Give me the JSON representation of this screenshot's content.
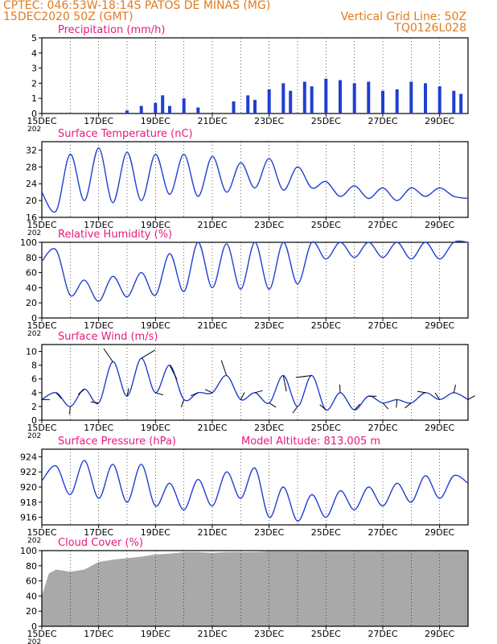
{
  "header": {
    "line1_left": "CPTEC:   046:53W-18:14S   PATOS DE MINAS (MG)",
    "line2_left": "15DEC2020 50Z (GMT)",
    "line2_right": "Vertical Grid Line: 50Z",
    "line3_right": "TQ0126L028"
  },
  "colors": {
    "header": "#e07a1c",
    "title": "#e8197c",
    "line": "#1f3fd0",
    "bars": "#1f3fd0",
    "cloud": "#a9a9a9",
    "arrow": "#000000"
  },
  "xaxis": {
    "start": "2020-12-15",
    "end": "2020-12-30",
    "ticks": [
      "15DEC",
      "17DEC",
      "19DEC",
      "21DEC",
      "23DEC",
      "25DEC",
      "27DEC",
      "29DEC"
    ],
    "year_label": "202"
  },
  "chart_data": [
    {
      "id": "precip",
      "type": "bar",
      "title": "Precipitation (mm/h)",
      "ylim": [
        0,
        5
      ],
      "yticks": [
        0,
        1,
        2,
        3,
        4,
        5
      ],
      "x": [
        "2020-12-18T00",
        "2020-12-18T12",
        "2020-12-19T00",
        "2020-12-19T06",
        "2020-12-19T12",
        "2020-12-20T00",
        "2020-12-20T12",
        "2020-12-21T18",
        "2020-12-22T06",
        "2020-12-22T12",
        "2020-12-23T00",
        "2020-12-23T12",
        "2020-12-23T18",
        "2020-12-24T06",
        "2020-12-24T12",
        "2020-12-25T00",
        "2020-12-25T12",
        "2020-12-26T00",
        "2020-12-26T12",
        "2020-12-27T00",
        "2020-12-27T12",
        "2020-12-28T00",
        "2020-12-28T12",
        "2020-12-29T00",
        "2020-12-29T12",
        "2020-12-29T18"
      ],
      "values": [
        0.2,
        0.5,
        0.7,
        1.2,
        0.5,
        1.0,
        0.4,
        0.8,
        1.2,
        0.9,
        1.6,
        2.0,
        1.5,
        2.1,
        1.8,
        2.3,
        2.2,
        2.0,
        2.1,
        1.5,
        1.6,
        2.1,
        2.0,
        1.8,
        1.5,
        1.3
      ]
    },
    {
      "id": "temp",
      "type": "line",
      "title": "Surface Temperature (nC)",
      "ylim": [
        16,
        34
      ],
      "yticks": [
        16,
        20,
        24,
        28,
        32
      ],
      "x": [
        "2020-12-15T00",
        "2020-12-15T12",
        "2020-12-16T00",
        "2020-12-16T12",
        "2020-12-17T00",
        "2020-12-17T12",
        "2020-12-18T00",
        "2020-12-18T12",
        "2020-12-19T00",
        "2020-12-19T12",
        "2020-12-20T00",
        "2020-12-20T12",
        "2020-12-21T00",
        "2020-12-21T12",
        "2020-12-22T00",
        "2020-12-22T12",
        "2020-12-23T00",
        "2020-12-23T12",
        "2020-12-24T00",
        "2020-12-24T12",
        "2020-12-25T00",
        "2020-12-25T12",
        "2020-12-26T00",
        "2020-12-26T12",
        "2020-12-27T00",
        "2020-12-27T12",
        "2020-12-28T00",
        "2020-12-28T12",
        "2020-12-29T00",
        "2020-12-29T12",
        "2020-12-30T00"
      ],
      "values": [
        22.0,
        17.5,
        31.0,
        20.0,
        32.5,
        19.5,
        31.5,
        20.0,
        31.0,
        21.5,
        31.0,
        21.0,
        30.5,
        22.0,
        29.0,
        23.0,
        30.0,
        22.5,
        28.0,
        23.0,
        24.5,
        21.0,
        23.5,
        20.5,
        23.0,
        20.0,
        23.0,
        21.0,
        23.0,
        21.0,
        20.5
      ]
    },
    {
      "id": "rh",
      "type": "line",
      "title": "Relative Humidity (%)",
      "ylim": [
        0,
        100
      ],
      "yticks": [
        0,
        20,
        40,
        60,
        80,
        100
      ],
      "x": [
        "2020-12-15T00",
        "2020-12-15T12",
        "2020-12-16T00",
        "2020-12-16T12",
        "2020-12-17T00",
        "2020-12-17T12",
        "2020-12-18T00",
        "2020-12-18T12",
        "2020-12-19T00",
        "2020-12-19T12",
        "2020-12-20T00",
        "2020-12-20T12",
        "2020-12-21T00",
        "2020-12-21T12",
        "2020-12-22T00",
        "2020-12-22T12",
        "2020-12-23T00",
        "2020-12-23T12",
        "2020-12-24T00",
        "2020-12-24T12",
        "2020-12-25T00",
        "2020-12-25T12",
        "2020-12-26T00",
        "2020-12-26T12",
        "2020-12-27T00",
        "2020-12-27T12",
        "2020-12-28T00",
        "2020-12-28T12",
        "2020-12-29T00",
        "2020-12-29T12",
        "2020-12-30T00"
      ],
      "values": [
        75,
        90,
        30,
        50,
        22,
        55,
        28,
        60,
        30,
        85,
        35,
        100,
        40,
        98,
        38,
        100,
        38,
        100,
        45,
        100,
        78,
        100,
        80,
        100,
        80,
        100,
        78,
        100,
        78,
        100,
        100
      ]
    },
    {
      "id": "wind",
      "type": "line",
      "title": "Surface Wind (m/s)",
      "ylim": [
        0,
        11
      ],
      "yticks": [
        0,
        2,
        4,
        6,
        8,
        10
      ],
      "x": [
        "2020-12-15T00",
        "2020-12-15T12",
        "2020-12-16T00",
        "2020-12-16T12",
        "2020-12-17T00",
        "2020-12-17T12",
        "2020-12-18T00",
        "2020-12-18T12",
        "2020-12-19T00",
        "2020-12-19T12",
        "2020-12-20T00",
        "2020-12-20T12",
        "2020-12-21T00",
        "2020-12-21T12",
        "2020-12-22T00",
        "2020-12-22T12",
        "2020-12-23T00",
        "2020-12-23T12",
        "2020-12-24T00",
        "2020-12-24T12",
        "2020-12-25T00",
        "2020-12-25T12",
        "2020-12-26T00",
        "2020-12-26T12",
        "2020-12-27T00",
        "2020-12-27T12",
        "2020-12-28T00",
        "2020-12-28T12",
        "2020-12-29T00",
        "2020-12-29T12",
        "2020-12-30T00"
      ],
      "values": [
        3.0,
        4.0,
        2.0,
        4.5,
        2.5,
        8.5,
        3.5,
        9.0,
        4.0,
        8.0,
        3.0,
        4.0,
        4.0,
        6.5,
        3.0,
        4.0,
        2.5,
        6.5,
        2.0,
        6.5,
        1.5,
        4.0,
        1.5,
        3.5,
        2.5,
        3.0,
        2.5,
        4.0,
        3.0,
        4.0,
        3.0
      ]
    },
    {
      "id": "pressure",
      "type": "line",
      "title": "Surface Pressure (hPa)",
      "annotation": "Model Altitude: 813.005 m",
      "ylim": [
        915,
        925
      ],
      "yticks": [
        916,
        918,
        920,
        922,
        924
      ],
      "x": [
        "2020-12-15T00",
        "2020-12-15T12",
        "2020-12-16T00",
        "2020-12-16T12",
        "2020-12-17T00",
        "2020-12-17T12",
        "2020-12-18T00",
        "2020-12-18T12",
        "2020-12-19T00",
        "2020-12-19T12",
        "2020-12-20T00",
        "2020-12-20T12",
        "2020-12-21T00",
        "2020-12-21T12",
        "2020-12-22T00",
        "2020-12-22T12",
        "2020-12-23T00",
        "2020-12-23T12",
        "2020-12-24T00",
        "2020-12-24T12",
        "2020-12-25T00",
        "2020-12-25T12",
        "2020-12-26T00",
        "2020-12-26T12",
        "2020-12-27T00",
        "2020-12-27T12",
        "2020-12-28T00",
        "2020-12-28T12",
        "2020-12-29T00",
        "2020-12-29T12",
        "2020-12-30T00"
      ],
      "values": [
        920.8,
        922.8,
        919.0,
        923.5,
        918.5,
        923.0,
        918.0,
        923.0,
        917.5,
        920.5,
        917.0,
        921.0,
        917.5,
        922.0,
        918.5,
        922.5,
        916.0,
        920.0,
        915.5,
        919.0,
        916.0,
        919.5,
        917.0,
        920.0,
        917.5,
        920.5,
        918.0,
        921.5,
        918.5,
        921.5,
        920.5
      ]
    },
    {
      "id": "cloud",
      "type": "area",
      "title": "Cloud Cover (%)",
      "ylim": [
        0,
        100
      ],
      "yticks": [
        0,
        20,
        40,
        60,
        80,
        100
      ],
      "x": [
        "2020-12-15T00",
        "2020-12-15T06",
        "2020-12-15T12",
        "2020-12-16T00",
        "2020-12-16T12",
        "2020-12-17T00",
        "2020-12-17T12",
        "2020-12-18T00",
        "2020-12-18T12",
        "2020-12-19T00",
        "2020-12-19T12",
        "2020-12-20T00",
        "2020-12-20T12",
        "2020-12-21T00",
        "2020-12-21T12",
        "2020-12-22T00",
        "2020-12-22T12",
        "2020-12-23T00",
        "2020-12-23T12",
        "2020-12-24T00",
        "2020-12-25T00",
        "2020-12-26T00",
        "2020-12-27T00",
        "2020-12-28T00",
        "2020-12-29T00",
        "2020-12-30T00"
      ],
      "values": [
        40,
        70,
        75,
        72,
        75,
        85,
        88,
        90,
        92,
        95,
        96,
        98,
        98,
        97,
        98,
        98,
        98,
        99,
        99,
        99,
        100,
        100,
        100,
        100,
        100,
        100
      ]
    }
  ]
}
